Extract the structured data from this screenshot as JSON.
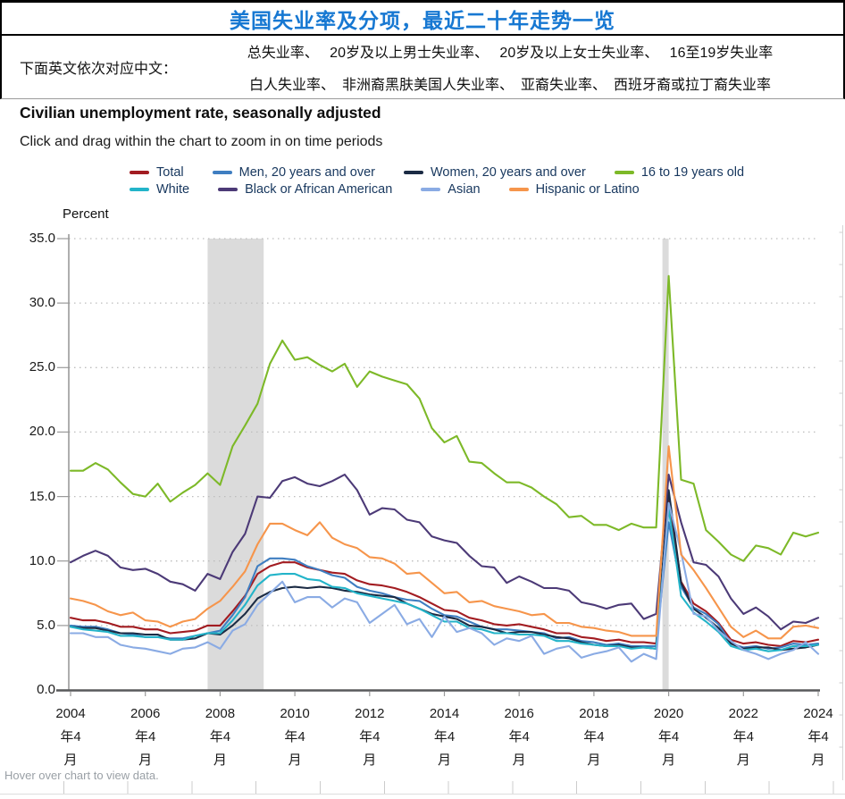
{
  "header": {
    "title": "美国失业率及分项，最近二十年走势一览",
    "note_label": "下面英文依次对应中文：",
    "note_line1": "总失业率、　 20岁及以上男士失业率、　 20岁及以上女士失业率、　 16至19岁失业率",
    "note_line2": "白人失业率、　非洲裔黑肤美国人失业率、　亚裔失业率、　西班牙裔或拉丁裔失业率"
  },
  "chart": {
    "title": "Civilian unemployment rate, seasonally adjusted",
    "subtitle": "Click and drag within the chart to zoom in on time periods",
    "unit_label": "Percent",
    "hover_hint": "Hover over chart to view data."
  },
  "chart_data": {
    "type": "line",
    "title": "Civilian unemployment rate, seasonally adjusted",
    "ylabel": "Percent",
    "ylim": [
      0,
      35
    ],
    "ytick_step": 5,
    "ytick_decimals": 1,
    "grid": "dotted-horizontal",
    "legend_position": "top",
    "x_start_month": "2004-04",
    "x_end_month": "2024-04",
    "x_interval_months": 4,
    "x_tick_years": [
      "2004",
      "2006",
      "2008",
      "2010",
      "2012",
      "2014",
      "2016",
      "2018",
      "2020",
      "2022",
      "2024"
    ],
    "x_tick_cjk_lines": [
      "年4",
      "月"
    ],
    "recession_bands": [
      {
        "start": "2007-12",
        "end": "2009-06"
      },
      {
        "start": "2020-02",
        "end": "2020-04"
      }
    ],
    "band_color": "#DBDBDB",
    "series": [
      {
        "name": "Total",
        "color": "#A21C21",
        "row": 0,
        "values": [
          5.6,
          5.4,
          5.4,
          5.2,
          4.9,
          4.9,
          4.7,
          4.7,
          4.4,
          4.5,
          4.6,
          5.0,
          5.0,
          6.1,
          7.3,
          9.0,
          9.6,
          9.9,
          9.9,
          9.5,
          9.3,
          9.1,
          9.0,
          8.5,
          8.2,
          8.1,
          7.9,
          7.6,
          7.2,
          6.7,
          6.2,
          6.1,
          5.6,
          5.4,
          5.1,
          5.0,
          5.1,
          4.9,
          4.7,
          4.4,
          4.4,
          4.1,
          4.0,
          3.8,
          3.9,
          3.7,
          3.7,
          3.6,
          14.7,
          8.4,
          6.7,
          6.1,
          5.2,
          3.9,
          3.6,
          3.7,
          3.5,
          3.4,
          3.8,
          3.7,
          3.9
        ]
      },
      {
        "name": "Men, 20 years and over",
        "color": "#3F7EC1",
        "row": 0,
        "values": [
          5.0,
          4.9,
          4.9,
          4.7,
          4.4,
          4.3,
          4.1,
          4.1,
          4.0,
          4.0,
          4.2,
          4.4,
          4.6,
          5.8,
          7.2,
          9.6,
          10.2,
          10.2,
          10.1,
          9.6,
          9.3,
          8.9,
          8.7,
          8.0,
          7.7,
          7.5,
          7.2,
          7.0,
          6.9,
          6.3,
          5.8,
          5.7,
          5.3,
          4.9,
          4.7,
          4.7,
          4.6,
          4.5,
          4.4,
          4.0,
          4.1,
          3.8,
          3.7,
          3.5,
          3.6,
          3.4,
          3.4,
          3.4,
          13.0,
          8.0,
          6.4,
          5.9,
          5.1,
          3.6,
          3.3,
          3.4,
          3.2,
          3.3,
          3.6,
          3.5,
          3.6
        ]
      },
      {
        "name": "Women, 20 years and over",
        "color": "#1B2B44",
        "row": 0,
        "values": [
          4.9,
          4.8,
          4.8,
          4.6,
          4.4,
          4.4,
          4.3,
          4.3,
          3.9,
          3.9,
          4.0,
          4.4,
          4.3,
          5.0,
          5.9,
          7.1,
          7.6,
          7.9,
          8.0,
          7.9,
          8.0,
          7.9,
          7.7,
          7.6,
          7.4,
          7.3,
          7.2,
          6.7,
          6.3,
          5.9,
          5.7,
          5.5,
          5.0,
          4.9,
          4.7,
          4.4,
          4.5,
          4.5,
          4.3,
          4.1,
          4.0,
          3.7,
          3.5,
          3.4,
          3.5,
          3.3,
          3.3,
          3.2,
          15.5,
          8.3,
          6.3,
          5.6,
          4.8,
          3.6,
          3.2,
          3.3,
          3.3,
          3.1,
          3.2,
          3.3,
          3.5
        ]
      },
      {
        "name": "16 to 19 years old",
        "color": "#7DB928",
        "row": 0,
        "values": [
          17.0,
          17.0,
          17.6,
          17.1,
          16.1,
          15.2,
          15.0,
          16.0,
          14.6,
          15.3,
          15.9,
          16.8,
          15.9,
          18.9,
          20.5,
          22.2,
          25.3,
          27.1,
          25.6,
          25.8,
          25.2,
          24.7,
          25.3,
          23.5,
          24.7,
          24.3,
          24.0,
          23.7,
          22.6,
          20.3,
          19.2,
          19.7,
          17.7,
          17.6,
          16.8,
          16.1,
          16.1,
          15.7,
          15.0,
          14.4,
          13.4,
          13.5,
          12.8,
          12.8,
          12.4,
          12.9,
          12.6,
          12.6,
          32.1,
          16.3,
          16.0,
          12.4,
          11.5,
          10.5,
          10.0,
          11.2,
          11.0,
          10.5,
          12.2,
          11.9,
          12.2
        ]
      },
      {
        "name": "White",
        "color": "#23B4C9",
        "row": 1,
        "values": [
          4.9,
          4.7,
          4.6,
          4.5,
          4.2,
          4.2,
          4.1,
          4.1,
          3.9,
          3.9,
          4.2,
          4.4,
          4.4,
          5.4,
          6.6,
          8.1,
          8.9,
          9.0,
          9.0,
          8.6,
          8.5,
          8.0,
          7.9,
          7.5,
          7.3,
          7.1,
          6.9,
          6.7,
          6.3,
          5.8,
          5.3,
          5.3,
          4.8,
          4.7,
          4.4,
          4.4,
          4.3,
          4.3,
          4.2,
          3.8,
          3.8,
          3.6,
          3.5,
          3.4,
          3.4,
          3.2,
          3.3,
          3.2,
          14.1,
          7.3,
          6.0,
          5.3,
          4.5,
          3.4,
          3.1,
          3.2,
          3.0,
          3.1,
          3.4,
          3.4,
          3.5
        ]
      },
      {
        "name": "Black or African American",
        "color": "#4C3A77",
        "row": 1,
        "values": [
          9.9,
          10.4,
          10.8,
          10.4,
          9.5,
          9.3,
          9.4,
          9.0,
          8.4,
          8.2,
          7.7,
          9.0,
          8.6,
          10.7,
          12.1,
          15.0,
          14.9,
          16.2,
          16.5,
          16.0,
          15.8,
          16.2,
          16.7,
          15.5,
          13.6,
          14.1,
          14.0,
          13.2,
          13.0,
          11.9,
          11.6,
          11.4,
          10.4,
          9.6,
          9.5,
          8.3,
          8.8,
          8.4,
          7.9,
          7.9,
          7.7,
          6.8,
          6.6,
          6.3,
          6.6,
          6.7,
          5.5,
          5.9,
          16.7,
          13.0,
          9.9,
          9.7,
          8.8,
          7.1,
          5.9,
          6.4,
          5.7,
          4.7,
          5.3,
          5.2,
          5.6
        ]
      },
      {
        "name": "Asian",
        "color": "#8AABE4",
        "row": 1,
        "values": [
          4.4,
          4.4,
          4.1,
          4.1,
          3.5,
          3.3,
          3.2,
          3.0,
          2.8,
          3.2,
          3.3,
          3.7,
          3.2,
          4.6,
          5.1,
          6.6,
          7.5,
          8.4,
          6.8,
          7.2,
          7.2,
          6.4,
          7.1,
          6.8,
          5.2,
          5.9,
          6.6,
          5.1,
          5.5,
          4.1,
          5.7,
          4.5,
          4.8,
          4.4,
          3.5,
          4.0,
          3.8,
          4.2,
          2.8,
          3.2,
          3.4,
          2.5,
          2.8,
          3.0,
          3.3,
          2.2,
          2.8,
          2.4,
          14.5,
          10.7,
          5.9,
          5.7,
          4.6,
          3.8,
          3.1,
          2.8,
          2.4,
          2.8,
          3.1,
          3.7,
          2.8
        ]
      },
      {
        "name": "Hispanic or Latino",
        "color": "#F6954B",
        "row": 1,
        "values": [
          7.1,
          6.9,
          6.6,
          6.1,
          5.8,
          6.0,
          5.4,
          5.3,
          4.9,
          5.3,
          5.5,
          6.3,
          6.9,
          8.0,
          9.2,
          11.3,
          12.9,
          12.9,
          12.4,
          12.0,
          13.0,
          11.8,
          11.3,
          11.0,
          10.3,
          10.2,
          9.8,
          9.0,
          9.1,
          8.3,
          7.5,
          7.6,
          6.8,
          6.9,
          6.5,
          6.3,
          6.1,
          5.8,
          5.9,
          5.2,
          5.2,
          4.9,
          4.8,
          4.6,
          4.5,
          4.2,
          4.2,
          4.2,
          18.9,
          10.5,
          9.3,
          7.9,
          6.4,
          4.9,
          4.1,
          4.6,
          4.0,
          4.0,
          4.9,
          5.0,
          4.8
        ]
      }
    ]
  },
  "colors": {
    "title_blue": "#1778D2",
    "legend_text": "#17375E",
    "grid_dots": "#BDBDBD",
    "axis_bottom": "#58595B",
    "axis_left": "#8C8C8C"
  }
}
